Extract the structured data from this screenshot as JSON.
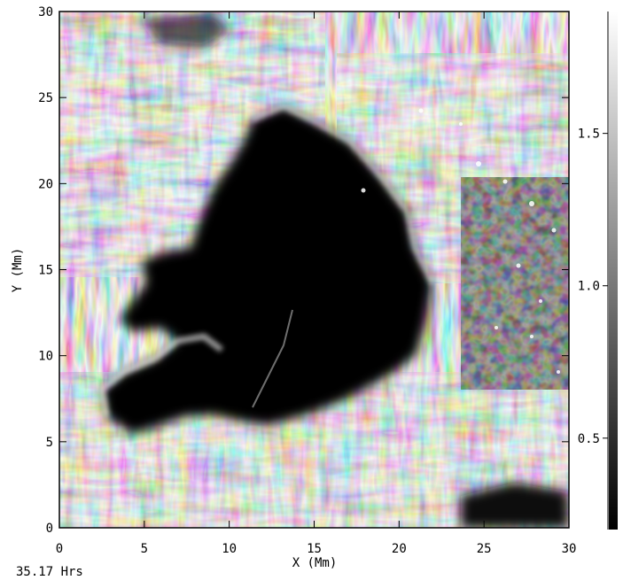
{
  "x_axis": {
    "title": "X (Mm)",
    "ticks": [
      "0",
      "5",
      "10",
      "15",
      "20",
      "25",
      "30"
    ],
    "range": [
      0,
      30
    ]
  },
  "y_axis": {
    "title": "Y (Mm)",
    "ticks": [
      "0",
      "5",
      "10",
      "15",
      "20",
      "25",
      "30"
    ],
    "range": [
      0,
      30
    ]
  },
  "colorbar": {
    "ticks": [
      "1.5",
      "1.0",
      "0.5"
    ],
    "values": [
      1.5,
      1.0,
      0.5
    ],
    "range": [
      0.2,
      1.9
    ],
    "colormap": "grayscale"
  },
  "time_label": "35.17 Hrs",
  "image_description_colors": {
    "umbra": "#050505",
    "penumbra_bright": "#e6e6e6",
    "background": "#ffffff"
  }
}
